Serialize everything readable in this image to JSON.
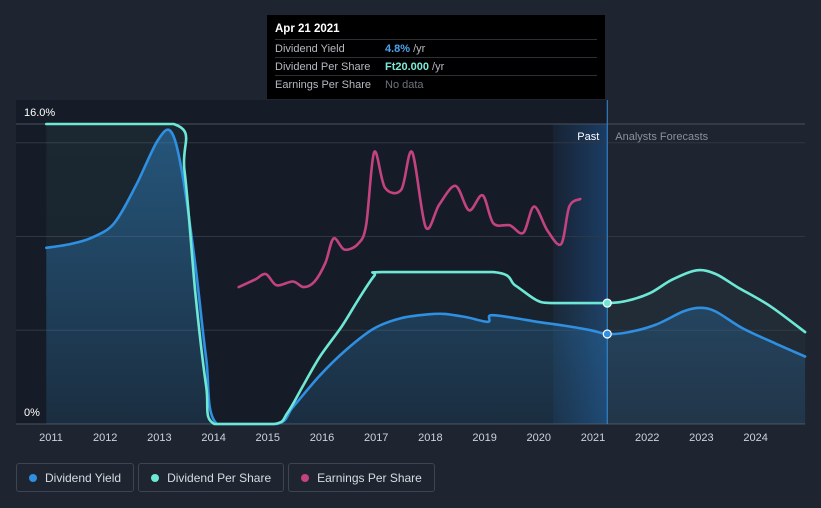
{
  "tooltip": {
    "date": "Apr 21 2021",
    "rows": [
      {
        "label": "Dividend Yield",
        "value": "4.8%",
        "unit": "/yr",
        "color": "#4aa3ec"
      },
      {
        "label": "Dividend Per Share",
        "value": "Ft20.000",
        "unit": "/yr",
        "color": "#7debd9"
      },
      {
        "label": "Earnings Per Share",
        "value": "No data",
        "unit": "",
        "color": "#6e737d"
      }
    ]
  },
  "legend": [
    {
      "label": "Dividend Yield",
      "color": "#2f8fe0"
    },
    {
      "label": "Dividend Per Share",
      "color": "#6ee8d4"
    },
    {
      "label": "Earnings Per Share",
      "color": "#c2437f"
    }
  ],
  "chart_data": {
    "type": "line",
    "x_ticks": [
      "2011",
      "2012",
      "2013",
      "2014",
      "2015",
      "2016",
      "2017",
      "2018",
      "2019",
      "2020",
      "2021",
      "2022",
      "2023",
      "2024"
    ],
    "y_tick_labels": [
      "16.0%",
      "0%"
    ],
    "ylim": [
      0,
      16
    ],
    "xlim": [
      2010.95,
      2024.95
    ],
    "past_label": "Past",
    "forecast_label": "Analysts Forecasts",
    "divider_x": 2021.3,
    "past_shade_start": 2020.3,
    "series": [
      {
        "name": "Dividend Yield",
        "color": "#2f8fe0",
        "points": [
          [
            2010.95,
            9.4
          ],
          [
            2011.4,
            9.6
          ],
          [
            2011.8,
            9.95
          ],
          [
            2012.2,
            10.7
          ],
          [
            2012.6,
            12.7
          ],
          [
            2013.0,
            15.1
          ],
          [
            2013.25,
            15.6
          ],
          [
            2013.45,
            13.5
          ],
          [
            2013.7,
            8.5
          ],
          [
            2013.9,
            3.5
          ],
          [
            2014.1,
            0
          ],
          [
            2015.2,
            0
          ],
          [
            2015.5,
            0.9
          ],
          [
            2016.0,
            2.6
          ],
          [
            2016.5,
            4.0
          ],
          [
            2017.0,
            5.1
          ],
          [
            2017.5,
            5.65
          ],
          [
            2018.0,
            5.85
          ],
          [
            2018.3,
            5.87
          ],
          [
            2018.7,
            5.7
          ],
          [
            2019.1,
            5.45
          ],
          [
            2019.15,
            5.8
          ],
          [
            2019.6,
            5.65
          ],
          [
            2020.0,
            5.45
          ],
          [
            2020.5,
            5.25
          ],
          [
            2021.0,
            5.0
          ],
          [
            2021.3,
            4.8
          ],
          [
            2021.7,
            4.9
          ],
          [
            2022.2,
            5.3
          ],
          [
            2022.7,
            6.0
          ],
          [
            2023.0,
            6.2
          ],
          [
            2023.3,
            6.0
          ],
          [
            2023.8,
            5.1
          ],
          [
            2024.4,
            4.3
          ],
          [
            2024.95,
            3.6
          ]
        ]
      },
      {
        "name": "Dividend Per Share",
        "color": "#6ee8d4",
        "points": [
          [
            2010.95,
            16.0
          ],
          [
            2013.3,
            16.0
          ],
          [
            2013.5,
            13.5
          ],
          [
            2013.7,
            7.0
          ],
          [
            2013.9,
            2.0
          ],
          [
            2014.05,
            0
          ],
          [
            2015.15,
            0
          ],
          [
            2015.4,
            0.6
          ],
          [
            2015.7,
            2.1
          ],
          [
            2016.0,
            3.6
          ],
          [
            2016.4,
            5.2
          ],
          [
            2016.7,
            6.6
          ],
          [
            2017.0,
            7.9
          ],
          [
            2017.15,
            8.1
          ],
          [
            2019.2,
            8.1
          ],
          [
            2019.6,
            7.4
          ],
          [
            2020.0,
            6.6
          ],
          [
            2020.3,
            6.45
          ],
          [
            2021.3,
            6.45
          ],
          [
            2021.7,
            6.6
          ],
          [
            2022.1,
            7.0
          ],
          [
            2022.5,
            7.7
          ],
          [
            2022.95,
            8.2
          ],
          [
            2023.3,
            8.0
          ],
          [
            2023.7,
            7.3
          ],
          [
            2024.3,
            6.3
          ],
          [
            2024.95,
            4.9
          ]
        ]
      },
      {
        "name": "Earnings Per Share",
        "color": "#c2437f",
        "points": [
          [
            2014.5,
            7.3
          ],
          [
            2014.8,
            7.7
          ],
          [
            2015.0,
            8.0
          ],
          [
            2015.2,
            7.4
          ],
          [
            2015.5,
            7.6
          ],
          [
            2015.7,
            7.3
          ],
          [
            2015.9,
            7.6
          ],
          [
            2016.1,
            8.6
          ],
          [
            2016.25,
            9.9
          ],
          [
            2016.45,
            9.3
          ],
          [
            2016.7,
            9.6
          ],
          [
            2016.85,
            10.6
          ],
          [
            2017.0,
            14.5
          ],
          [
            2017.2,
            12.6
          ],
          [
            2017.5,
            12.5
          ],
          [
            2017.7,
            14.5
          ],
          [
            2017.95,
            10.5
          ],
          [
            2018.2,
            11.7
          ],
          [
            2018.5,
            12.7
          ],
          [
            2018.75,
            11.4
          ],
          [
            2019.0,
            12.2
          ],
          [
            2019.2,
            10.7
          ],
          [
            2019.5,
            10.6
          ],
          [
            2019.75,
            10.2
          ],
          [
            2019.95,
            11.6
          ],
          [
            2020.2,
            10.3
          ],
          [
            2020.45,
            9.6
          ],
          [
            2020.6,
            11.6
          ],
          [
            2020.8,
            12.0
          ]
        ]
      }
    ],
    "current_points": [
      {
        "series": "Dividend Yield",
        "x": 2021.3,
        "y": 4.8
      },
      {
        "series": "Dividend Per Share",
        "x": 2021.3,
        "y": 6.45
      }
    ]
  }
}
